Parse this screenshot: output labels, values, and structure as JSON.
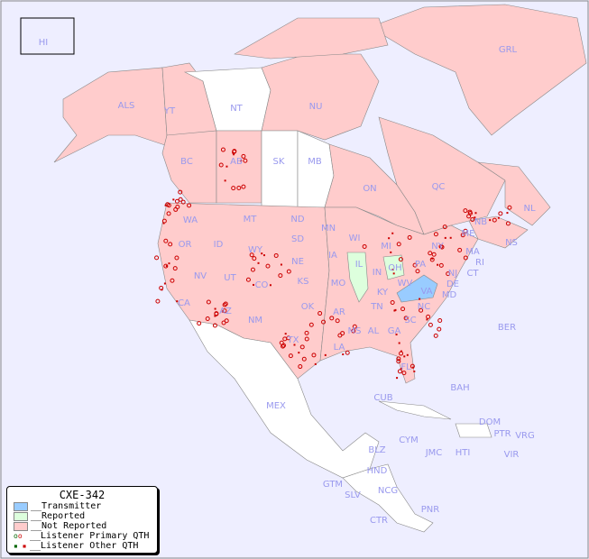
{
  "colors": {
    "ocean": "#eeeeff",
    "transmitter": "#99ccff",
    "reported": "#ddffdd",
    "not_reported": "#ffcccc",
    "no_data": "#ffffff",
    "label": "#9999ee",
    "primary": "#cc0000",
    "other": "#cc0000",
    "primary_reported": "#006600"
  },
  "legend": {
    "title": "CXE-342",
    "items": [
      "__Transmitter",
      "__Reported",
      "__Not Reported",
      "__Listener Primary QTH",
      "__Listener Other QTH"
    ]
  },
  "regions": [
    "HI",
    "ALS",
    "YT",
    "NT",
    "NU",
    "GRL",
    "BC",
    "AB",
    "SK",
    "MB",
    "ON",
    "QC",
    "NL",
    "NS",
    "NB",
    "ME",
    "NY",
    "PA",
    "NJ",
    "DE",
    "MD",
    "VA",
    "WV",
    "OH",
    "MI",
    "IN",
    "IL",
    "KY",
    "TN",
    "NC",
    "SC",
    "GA",
    "AL",
    "MS",
    "LA",
    "AR",
    "MO",
    "IA",
    "WI",
    "MN",
    "ND",
    "SD",
    "NE",
    "KS",
    "OK",
    "TX",
    "NM",
    "AZ",
    "CO",
    "UT",
    "NV",
    "CA",
    "OR",
    "WA",
    "ID",
    "MT",
    "WY",
    "FL",
    "MA",
    "CT",
    "RI",
    "MEX",
    "CUB",
    "BAH",
    "DOM",
    "PTR",
    "VRG",
    "CYM",
    "JMC",
    "HTI",
    "VIR",
    "BLZ",
    "GTM",
    "HND",
    "SLV",
    "NCG",
    "CTR",
    "PNR",
    "BER"
  ],
  "status": {
    "transmitter": [
      "VA"
    ],
    "reported": [
      "IL",
      "OH"
    ],
    "no_data": [
      "NT",
      "SK",
      "MB",
      "ND",
      "MEX",
      "BLZ",
      "GTM",
      "HND",
      "SLV",
      "NCG",
      "CTR",
      "PNR",
      "CUB",
      "BAH",
      "JMC",
      "HTI",
      "DOM",
      "CYM"
    ]
  }
}
